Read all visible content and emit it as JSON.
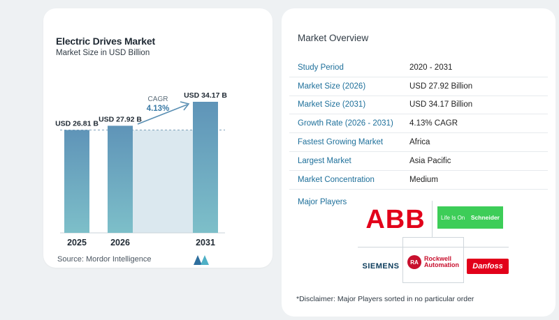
{
  "chart": {
    "title": "Electric Drives Market",
    "subtitle": "Market Size in USD Billion",
    "source": "Source:  Mordor Intelligence",
    "cagr_label": "CAGR",
    "cagr_value": "4.13%"
  },
  "chart_data": {
    "type": "bar",
    "title": "Electric Drives Market",
    "subtitle": "Market Size in USD Billion",
    "categories": [
      "2025",
      "2026",
      "2031"
    ],
    "values": [
      26.81,
      27.92,
      34.17
    ],
    "value_labels": [
      "USD 26.81 B",
      "USD 27.92 B",
      "USD 34.17 B"
    ],
    "annotation": {
      "text": "CAGR",
      "value": "4.13%"
    },
    "grid": false,
    "legend": "none",
    "colors": {
      "bar_top": "#5f94b8",
      "bar_bottom": "#7dbfc9",
      "shade": "#dbe8ef",
      "arrow": "#5a8fb3",
      "cagr": "#3a7aa6"
    }
  },
  "overview": {
    "title": "Market Overview",
    "rows": [
      {
        "key": "Study Period",
        "value": "2020 - 2031"
      },
      {
        "key": "Market Size (2026)",
        "value": "USD 27.92 Billion"
      },
      {
        "key": "Market Size (2031)",
        "value": "USD 34.17 Billion"
      },
      {
        "key": "Growth Rate (2026 - 2031)",
        "value": "4.13% CAGR"
      },
      {
        "key": "Fastest Growing Market",
        "value": "Africa"
      },
      {
        "key": "Largest Market",
        "value": "Asia Pacific"
      },
      {
        "key": "Market Concentration",
        "value": "Medium"
      }
    ],
    "major_players_label": "Major Players",
    "disclaimer": "*Disclaimer: Major Players sorted in no particular order"
  },
  "players": {
    "abb": "ABB",
    "schneider_tagline": "Life Is On",
    "schneider_name": "Schneider",
    "siemens": "SIEMENS",
    "rockwell_badge": "RA",
    "rockwell_line1": "Rockwell",
    "rockwell_line2": "Automation",
    "danfoss": "Danfoss"
  }
}
